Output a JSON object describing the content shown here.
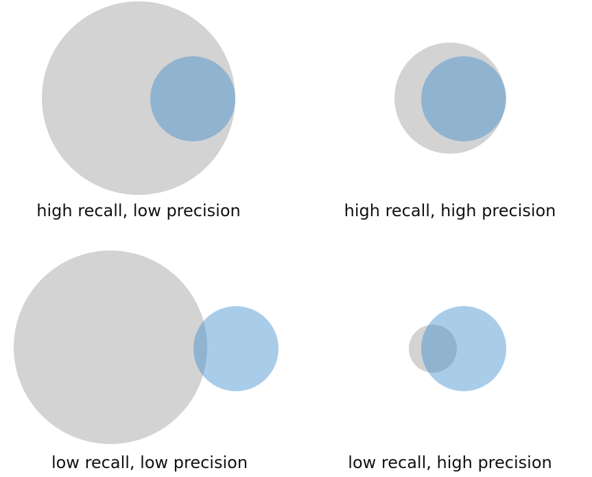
{
  "panels": [
    {
      "label": "high recall, low precision"
    },
    {
      "label": "high recall, high precision"
    },
    {
      "label": "low recall, low precision"
    },
    {
      "label": "low recall, high precision"
    }
  ]
}
